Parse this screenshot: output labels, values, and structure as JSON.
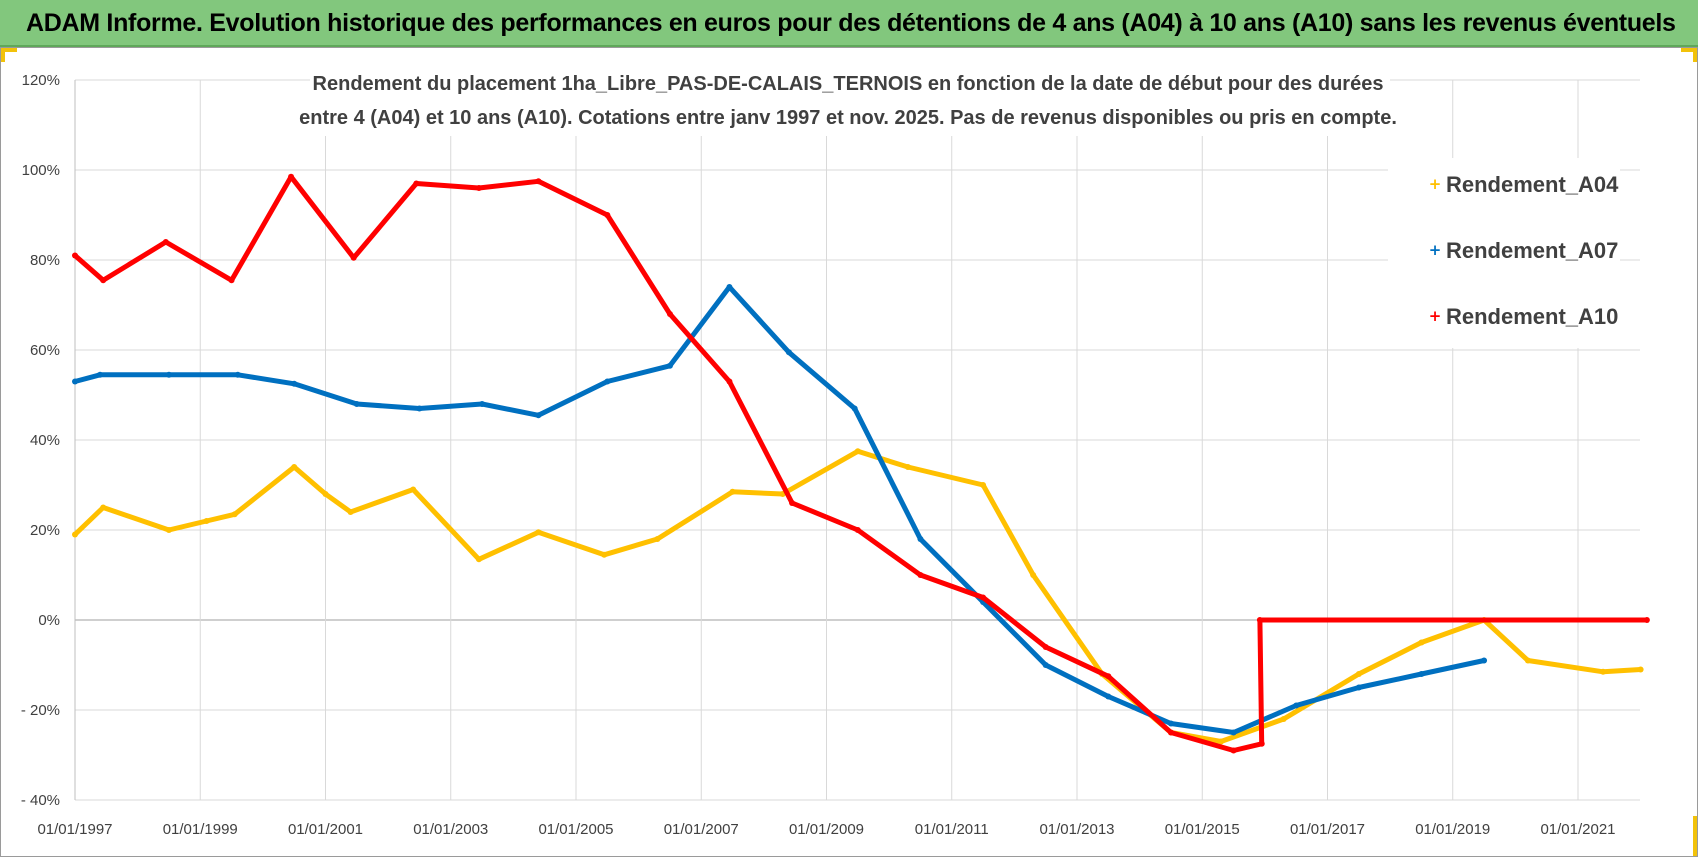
{
  "banner": {
    "title": "ADAM Informe. Evolution historique des performances en euros pour des détentions de 4 ans (A04) à 10 ans (A10) sans les revenus éventuels"
  },
  "colors": {
    "banner_bg": "#82c77d",
    "accent_corner": "#f2c20a",
    "A04": "#ffc000",
    "A07": "#0070c0",
    "A10": "#ff0000"
  },
  "chart_data": {
    "type": "line",
    "title": [
      "Rendement du placement 1ha_Libre_PAS-DE-CALAIS_TERNOIS en fonction de la date de début pour des durées",
      "entre 4 (A04) et 10 ans (A10).  Cotations entre janv 1997 et nov. 2025. Pas de revenus disponibles ou pris en compte."
    ],
    "xlabel": "",
    "ylabel": "",
    "xlim": [
      1997.0,
      2022.1
    ],
    "ylim": [
      -40,
      120
    ],
    "y_ticks": [
      -40,
      -20,
      0,
      20,
      40,
      60,
      80,
      100,
      120
    ],
    "y_tick_labels": [
      "- 40%",
      "- 20%",
      "0%",
      "20%",
      "40%",
      "60%",
      "80%",
      "100%",
      "120%"
    ],
    "x_ticks": [
      1997,
      1999,
      2001,
      2003,
      2005,
      2007,
      2009,
      2011,
      2013,
      2015,
      2017,
      2019,
      2021
    ],
    "x_tick_labels": [
      "01/01/1997",
      "01/01/1999",
      "01/01/2001",
      "01/01/2003",
      "01/01/2005",
      "01/01/2007",
      "01/01/2009",
      "01/01/2011",
      "01/01/2013",
      "01/01/2015",
      "01/01/2017",
      "01/01/2019",
      "01/01/2021"
    ],
    "grid": true,
    "legend_position": "top-right",
    "series": [
      {
        "name": "Rendement_A04",
        "color": "#ffc000",
        "x": [
          1997.0,
          1997.45,
          1998.5,
          1999.1,
          1999.55,
          2000.5,
          2001.0,
          2001.4,
          2002.4,
          2003.45,
          2004.4,
          2005.45,
          2006.3,
          2007.5,
          2008.3,
          2009.5,
          2010.3,
          2011.5,
          2012.3,
          2013.4,
          2014.5,
          2015.3,
          2016.3,
          2017.5,
          2018.5,
          2019.5,
          2020.2,
          2021.4,
          2022.0
        ],
        "values": [
          19,
          25,
          20,
          22,
          23.5,
          34,
          28,
          24,
          29,
          13.5,
          19.5,
          14.5,
          18,
          28.5,
          28,
          37.5,
          34,
          30,
          10,
          -12,
          -25,
          -27,
          -22,
          -12,
          -5,
          0,
          -9,
          -11.5,
          -11
        ]
      },
      {
        "name": "Rendement_A07",
        "color": "#0070c0",
        "x": [
          1997.0,
          1997.4,
          1998.5,
          1999.6,
          2000.5,
          2001.5,
          2002.5,
          2003.5,
          2004.4,
          2005.5,
          2006.5,
          2007.45,
          2008.4,
          2009.45,
          2010.5,
          2011.5,
          2012.5,
          2013.5,
          2014.5,
          2015.5,
          2016.5,
          2017.5,
          2018.5,
          2019.5
        ],
        "values": [
          53,
          54.5,
          54.5,
          54.5,
          52.5,
          48,
          47,
          48,
          45.5,
          53,
          56.5,
          74,
          59.5,
          47,
          18,
          4,
          -10,
          -17,
          -23,
          -25,
          -19,
          -15,
          -12,
          -9
        ]
      },
      {
        "name": "Rendement_A10",
        "color": "#ff0000",
        "x": [
          1997.0,
          1997.45,
          1998.45,
          1999.5,
          2000.45,
          2001.45,
          2002.45,
          2003.45,
          2004.4,
          2005.5,
          2006.5,
          2007.45,
          2008.45,
          2009.5,
          2010.5,
          2011.5,
          2012.5,
          2013.5,
          2014.5,
          2015.5,
          2015.95,
          2015.92,
          2022.1
        ],
        "values": [
          81,
          75.5,
          84,
          75.5,
          98.5,
          80.5,
          97,
          96,
          97.5,
          90,
          68,
          53,
          26,
          20,
          10,
          5,
          -6,
          -12.5,
          -25,
          -29,
          -27.5,
          0,
          0
        ]
      }
    ]
  }
}
